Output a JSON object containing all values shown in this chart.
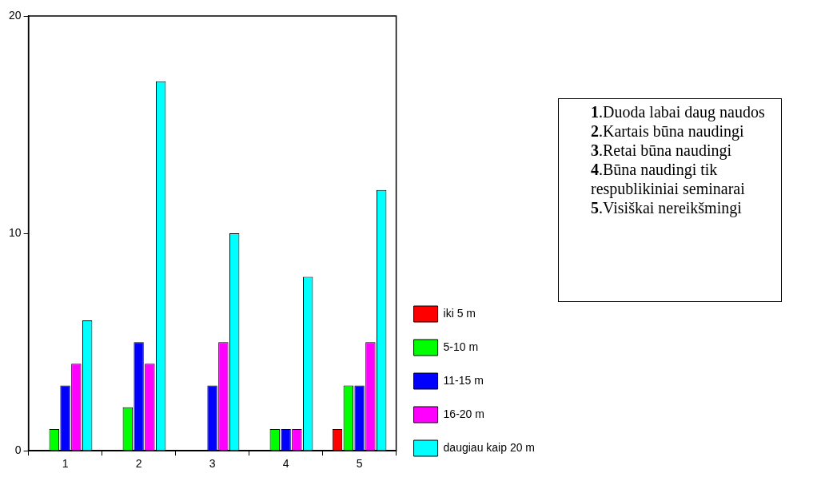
{
  "chart_data": {
    "type": "bar",
    "categories": [
      "1",
      "2",
      "3",
      "4",
      "5"
    ],
    "series": [
      {
        "name": "iki 5 m",
        "color": "#ff0000",
        "values": [
          0,
          0,
          0,
          0,
          1
        ]
      },
      {
        "name": "5-10 m",
        "color": "#00ff00",
        "values": [
          1,
          2,
          0,
          1,
          3
        ]
      },
      {
        "name": "11-15 m",
        "color": "#0000ff",
        "values": [
          3,
          5,
          3,
          1,
          3
        ]
      },
      {
        "name": "16-20 m",
        "color": "#ff00ff",
        "values": [
          4,
          4,
          5,
          1,
          5
        ]
      },
      {
        "name": "daugiau kaip 20 m",
        "color": "#00ffff",
        "values": [
          6,
          17,
          10,
          8,
          12
        ]
      }
    ],
    "ylim": [
      0,
      20
    ],
    "yticks": [
      0,
      10,
      20
    ],
    "grid": false,
    "legend": "right",
    "annotations": [
      "1.Duoda labai daug naudos",
      "2.Kartais būna naudingi",
      "3.Retai būna naudingi",
      "4.Būna naudingi tik respublikiniai seminarai",
      "5.Visiškai nereikšmingi"
    ]
  }
}
